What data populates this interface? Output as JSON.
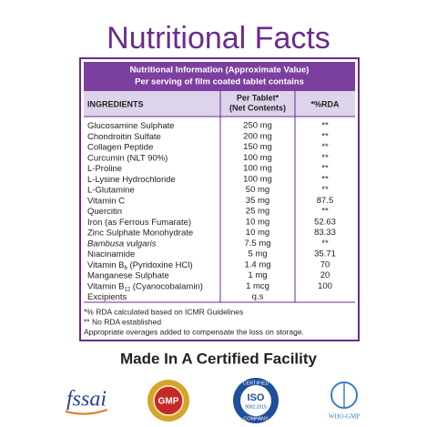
{
  "title": "Nutritional Facts",
  "table": {
    "heading": [
      "Nutritional Information (Approximate Value)",
      "Per serving of film coated tablet contains"
    ],
    "columns": [
      "INGREDIENTS",
      [
        "Per Tablet*",
        "(Net Contents)"
      ],
      "*%RDA"
    ],
    "rows": [
      {
        "name": "Glucosamine Sulphate",
        "amount": "250 mg",
        "rda": "**"
      },
      {
        "name": "Chondroitin Sulfate",
        "amount": "200 mg",
        "rda": "**"
      },
      {
        "name": "Collagen Peptide",
        "amount": "150 mg",
        "rda": "**"
      },
      {
        "name": "Curcumin (NLT 90%)",
        "amount": "100 mg",
        "rda": "**"
      },
      {
        "name": "L-Proline",
        "amount": "100 mg",
        "rda": "**"
      },
      {
        "name": "L-Lysine Hydrochloride",
        "amount": "100 mg",
        "rda": "**"
      },
      {
        "name": "L-Glutamine",
        "amount": "50 mg",
        "rda": "**"
      },
      {
        "name": "Vitamin C",
        "amount": "35 mg",
        "rda": "87.5"
      },
      {
        "name": "Quercitin",
        "amount": "25 mg",
        "rda": "**"
      },
      {
        "name": "Iron (as Ferrous Fumarate)",
        "amount": "10 mg",
        "rda": "52.63"
      },
      {
        "name": "Zinc Sulphate Monohydrate",
        "amount": "10 mg",
        "rda": "83.33"
      },
      {
        "name": "Bambusa vulgaris",
        "italic": true,
        "amount": "7.5 mg",
        "rda": "**"
      },
      {
        "name": "Niacinamide",
        "amount": "5 mg",
        "rda": "35.71"
      },
      {
        "name": "Vitamin B",
        "sub": "6",
        "suffix": " (Pyridoxine HCl)",
        "amount": "1.4 mg",
        "rda": "70"
      },
      {
        "name": "Manganese Sulphate",
        "amount": "1 mg",
        "rda": "20"
      },
      {
        "name": "Vitamin B",
        "sub": "12",
        "suffix": " (Cyanocobalamin)",
        "amount": "1 mcg",
        "rda": "100"
      },
      {
        "name": "Excipients",
        "amount": "q.s"
      }
    ]
  },
  "footnotes": [
    "*% RDA calculated based on ICMR Guidelines",
    "** No RDA established",
    "Appropriate overages added to compensate the loss on storage."
  ],
  "facility": "Made In A Certified Facility",
  "logos": {
    "fssai": "fssai",
    "gmp": "GMP",
    "iso": [
      "CERTIFIED",
      "ISO",
      "9001:2015",
      "COMPANY"
    ],
    "who": "WHO-GMP"
  }
}
